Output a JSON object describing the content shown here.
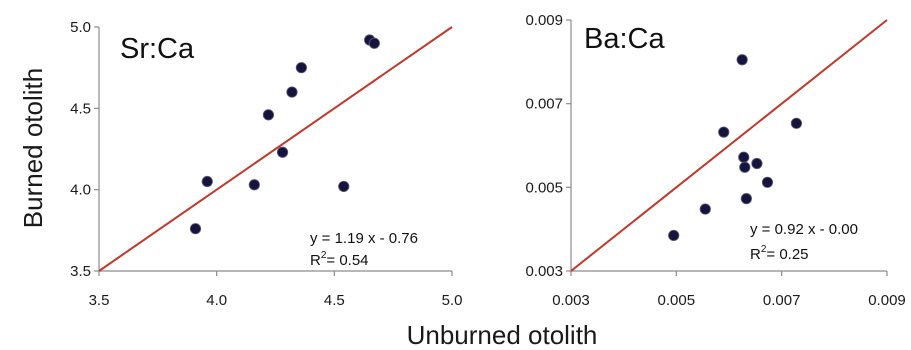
{
  "figure": {
    "ylabel": "Burned otolith",
    "xlabel": "Unburned otolith"
  },
  "chart_data": [
    {
      "type": "scatter",
      "title": "Sr:Ca",
      "xlim": [
        3.5,
        5.0
      ],
      "ylim": [
        3.5,
        5.0
      ],
      "xticks": [
        "3.5",
        "4.0",
        "4.5",
        "5.0"
      ],
      "yticks": [
        "3.5",
        "4.0",
        "4.5",
        "5.0"
      ],
      "xtick_values": [
        3.5,
        4.0,
        4.5,
        5.0
      ],
      "ytick_values": [
        3.5,
        4.0,
        4.5,
        5.0
      ],
      "points": [
        {
          "x": 3.91,
          "y": 3.76
        },
        {
          "x": 3.96,
          "y": 4.05
        },
        {
          "x": 4.16,
          "y": 4.03
        },
        {
          "x": 4.22,
          "y": 4.46
        },
        {
          "x": 4.28,
          "y": 4.23
        },
        {
          "x": 4.32,
          "y": 4.6
        },
        {
          "x": 4.36,
          "y": 4.75
        },
        {
          "x": 4.54,
          "y": 4.02
        },
        {
          "x": 4.65,
          "y": 4.92
        },
        {
          "x": 4.67,
          "y": 4.9
        }
      ],
      "line": {
        "from": [
          3.5,
          3.5
        ],
        "to": [
          5.0,
          5.0
        ]
      },
      "equation": "y = 1.19 x - 0.76",
      "r2_prefix": "R",
      "r2_sup": "2",
      "r2_value": "= 0.54",
      "colors": {
        "point": "#14143c",
        "line": "#c0392b",
        "axis": "#8c8c8c"
      }
    },
    {
      "type": "scatter",
      "title": "Ba:Ca",
      "xlim": [
        0.003,
        0.009
      ],
      "ylim": [
        0.003,
        0.009
      ],
      "xticks": [
        "0.003",
        "0.005",
        "0.007",
        "0.009"
      ],
      "yticks": [
        "0.003",
        "0.005",
        "0.007",
        "0.009"
      ],
      "xtick_values": [
        0.003,
        0.005,
        0.007,
        0.009
      ],
      "ytick_values": [
        0.003,
        0.005,
        0.007,
        0.009
      ],
      "points": [
        {
          "x": 0.00495,
          "y": 0.00385
        },
        {
          "x": 0.00555,
          "y": 0.00448
        },
        {
          "x": 0.0059,
          "y": 0.00632
        },
        {
          "x": 0.00625,
          "y": 0.00805
        },
        {
          "x": 0.00628,
          "y": 0.00572
        },
        {
          "x": 0.0063,
          "y": 0.00548
        },
        {
          "x": 0.00633,
          "y": 0.00473
        },
        {
          "x": 0.00653,
          "y": 0.00557
        },
        {
          "x": 0.00673,
          "y": 0.00512
        },
        {
          "x": 0.00728,
          "y": 0.00653
        }
      ],
      "line": {
        "from": [
          0.003,
          0.003
        ],
        "to": [
          0.009,
          0.009
        ]
      },
      "equation": "y = 0.92 x - 0.00",
      "r2_prefix": "R",
      "r2_sup": "2",
      "r2_value": "= 0.25",
      "colors": {
        "point": "#14143c",
        "line": "#c0392b",
        "axis": "#8c8c8c"
      }
    }
  ]
}
